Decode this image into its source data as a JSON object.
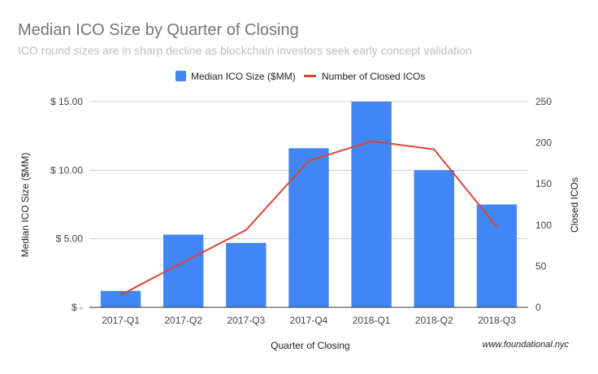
{
  "chart_data": {
    "type": "bar",
    "title": "Median ICO Size by Quarter of Closing",
    "subtitle": "ICO round sizes are in sharp decline as blockchain investors seek early concept validation",
    "xlabel": "Quarter of Closing",
    "ylabel": "Median ICO Size ($MM)",
    "y2label": "Closed ICOs",
    "categories": [
      "2017-Q1",
      "2017-Q2",
      "2017-Q3",
      "2017-Q4",
      "2018-Q1",
      "2018-Q2",
      "2018-Q3"
    ],
    "series": [
      {
        "name": "Median ICO Size ($MM)",
        "type": "bar",
        "axis": "left",
        "color": "#4285f4",
        "values": [
          1.2,
          5.3,
          4.7,
          11.6,
          15.0,
          10.0,
          7.5
        ]
      },
      {
        "name": "Number of Closed ICOs",
        "type": "line",
        "axis": "right",
        "color": "#db4437",
        "values": [
          15,
          55,
          94,
          178,
          202,
          192,
          98
        ]
      }
    ],
    "ylim": [
      0,
      15
    ],
    "y2lim": [
      0,
      250
    ],
    "yticks": [
      {
        "value": 0,
        "label": "$ -"
      },
      {
        "value": 5,
        "label": "$ 5.00"
      },
      {
        "value": 10,
        "label": "$ 10.00"
      },
      {
        "value": 15,
        "label": "$ 15.00"
      }
    ],
    "y2ticks": [
      {
        "value": 0,
        "label": "0"
      },
      {
        "value": 50,
        "label": "50"
      },
      {
        "value": 100,
        "label": "100"
      },
      {
        "value": 150,
        "label": "150"
      },
      {
        "value": 200,
        "label": "200"
      },
      {
        "value": 250,
        "label": "250"
      }
    ],
    "legend_position": "top",
    "grid": true,
    "source": "www.foundational.nyc"
  }
}
